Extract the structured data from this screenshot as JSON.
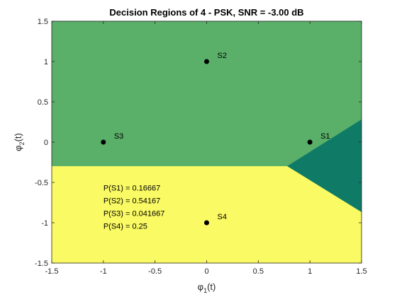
{
  "chart_data": {
    "type": "scatter",
    "title": "Decision Regions of 4 - PSK, SNR = -3.00 dB",
    "xlabel": {
      "base": "φ",
      "sub": "1",
      "suffix": "(t)"
    },
    "ylabel": {
      "base": "φ",
      "sub": "2",
      "suffix": "(t)"
    },
    "xlim": [
      -1.5,
      1.5
    ],
    "ylim": [
      -1.5,
      1.5
    ],
    "xticks": [
      -1.5,
      -1,
      -0.5,
      0,
      0.5,
      1,
      1.5
    ],
    "xtick_labels": [
      "-1.5",
      "-1",
      "-0.5",
      "0",
      "0.5",
      "1",
      "1.5"
    ],
    "yticks": [
      -1.5,
      -1,
      -0.5,
      0,
      0.5,
      1,
      1.5
    ],
    "ytick_labels": [
      "-1.5",
      "-1",
      "-0.5",
      "0",
      "0.5",
      "1",
      "1.5"
    ],
    "grid": false,
    "points": [
      {
        "label": "S1",
        "x": 1,
        "y": 0
      },
      {
        "label": "S2",
        "x": 0,
        "y": 1
      },
      {
        "label": "S3",
        "x": -1,
        "y": 0
      },
      {
        "label": "S4",
        "x": 0,
        "y": -1
      }
    ],
    "regions": [
      {
        "name": "S2 region",
        "color": "#5aaf69",
        "polygon": [
          [
            -1.5,
            -0.3
          ],
          [
            0.78,
            -0.3
          ],
          [
            1.5,
            0.28
          ],
          [
            1.5,
            1.5
          ],
          [
            -1.5,
            1.5
          ]
        ]
      },
      {
        "name": "S1 region",
        "color": "#0f7a66",
        "polygon": [
          [
            0.78,
            -0.3
          ],
          [
            1.5,
            0.28
          ],
          [
            1.5,
            -0.87
          ]
        ]
      },
      {
        "name": "S4 region",
        "color": "#fafa64",
        "polygon": [
          [
            -1.5,
            -1.5
          ],
          [
            1.5,
            -1.5
          ],
          [
            1.5,
            -0.87
          ],
          [
            0.78,
            -0.3
          ],
          [
            -1.5,
            -0.3
          ]
        ]
      }
    ],
    "annotations": [
      "P(S1) = 0.16667",
      "P(S2) = 0.54167",
      "P(S3) = 0.041667",
      "P(S4) = 0.25"
    ],
    "annotation_anchor": {
      "x": -1.0,
      "y": -0.6
    }
  }
}
